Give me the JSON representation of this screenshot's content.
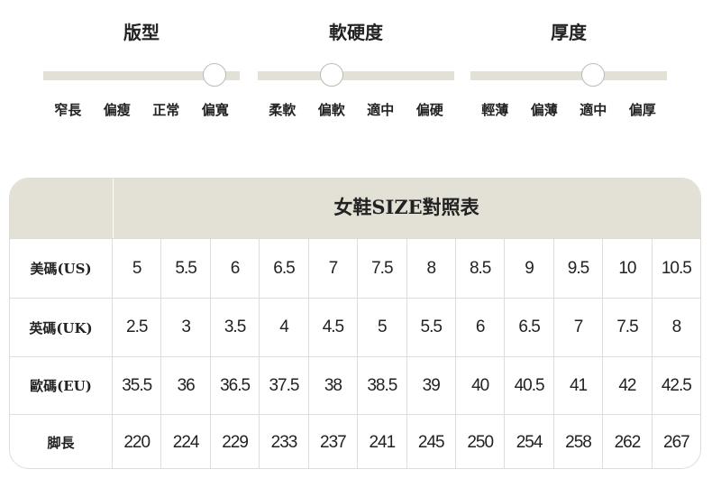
{
  "gauges": [
    {
      "title": "版型",
      "labels": [
        "窄長",
        "偏瘦",
        "正常",
        "偏寬"
      ],
      "selected": 3
    },
    {
      "title": "軟硬度",
      "labels": [
        "柔軟",
        "偏軟",
        "適中",
        "偏硬"
      ],
      "selected": 1
    },
    {
      "title": "厚度",
      "labels": [
        "輕薄",
        "偏薄",
        "適中",
        "偏厚"
      ],
      "selected": 2
    }
  ],
  "table": {
    "title": "女鞋SIZE對照表",
    "rows": [
      {
        "label": "美碼(US)",
        "values": [
          "5",
          "5.5",
          "6",
          "6.5",
          "7",
          "7.5",
          "8",
          "8.5",
          "9",
          "9.5",
          "10",
          "10.5"
        ]
      },
      {
        "label": "英碼(UK)",
        "values": [
          "2.5",
          "3",
          "3.5",
          "4",
          "4.5",
          "5",
          "5.5",
          "6",
          "6.5",
          "7",
          "7.5",
          "8"
        ]
      },
      {
        "label": "歐碼(EU)",
        "values": [
          "35.5",
          "36",
          "36.5",
          "37.5",
          "38",
          "38.5",
          "39",
          "40",
          "40.5",
          "41",
          "42",
          "42.5"
        ]
      },
      {
        "label": "脚長",
        "values": [
          "220",
          "224",
          "229",
          "233",
          "237",
          "241",
          "245",
          "250",
          "254",
          "258",
          "262",
          "267"
        ]
      }
    ]
  },
  "colors": {
    "accent": "#e3e1d6"
  }
}
